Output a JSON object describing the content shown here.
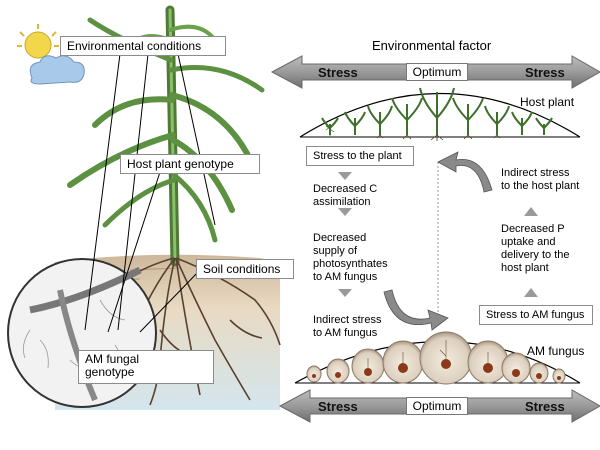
{
  "left_labels": {
    "environmental_conditions": "Environmental conditions",
    "host_plant_genotype": "Host plant genotype",
    "soil_conditions": "Soil conditions",
    "am_fungal_genotype": "AM fungal\ngenotype"
  },
  "top_scale": {
    "title": "Environmental factor",
    "left": "Stress",
    "middle": "Optimum",
    "right": "Stress",
    "curve_label": "Host plant"
  },
  "bottom_scale": {
    "left": "Stress",
    "middle": "Optimum",
    "right": "Stress",
    "curve_label": "AM fungus"
  },
  "left_chain": {
    "box": "Stress to the plant",
    "step1": "Decreased C\nassimilation",
    "step2": "Decreased\nsupply of\nphotosynthates\nto AM fungus",
    "step3": "Indirect stress\nto AM fungus"
  },
  "right_chain": {
    "box": "Stress to AM fungus",
    "step1": "Decreased P\nuptake and\ndelivery to the\nhost plant",
    "step2": "Indirect stress\nto the host plant"
  },
  "colors": {
    "arrow_grey": "#8a8a8a",
    "plant_green": "#4f8a3a",
    "root_brown": "#5a4030",
    "sun_yellow": "#f2d64b",
    "cloud_blue": "#a9c9ea"
  }
}
